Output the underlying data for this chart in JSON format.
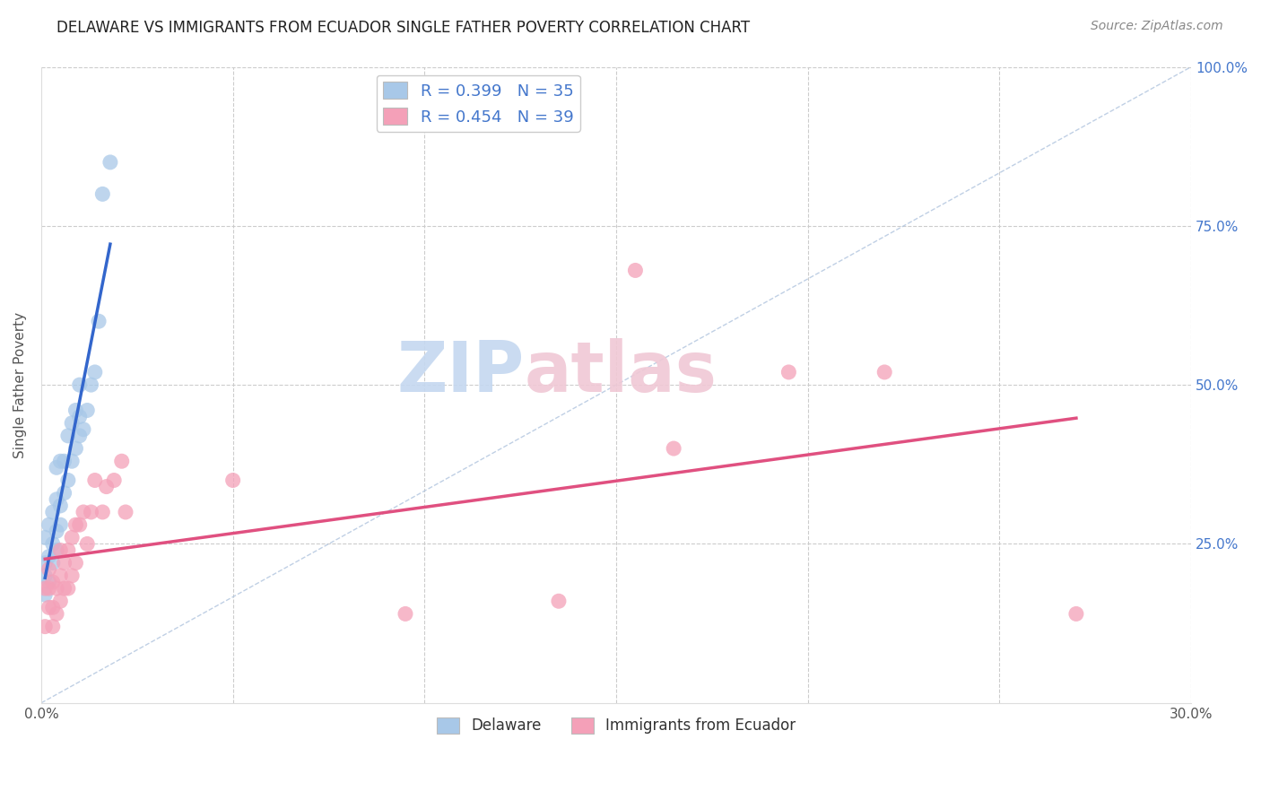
{
  "title": "DELAWARE VS IMMIGRANTS FROM ECUADOR SINGLE FATHER POVERTY CORRELATION CHART",
  "source": "Source: ZipAtlas.com",
  "ylabel": "Single Father Poverty",
  "xlim": [
    0.0,
    0.3
  ],
  "ylim": [
    0.0,
    1.0
  ],
  "legend_R_blue": "R = 0.399",
  "legend_N_blue": "N = 35",
  "legend_R_pink": "R = 0.454",
  "legend_N_pink": "N = 39",
  "legend_label_blue": "Delaware",
  "legend_label_pink": "Immigrants from Ecuador",
  "blue_color": "#a8c8e8",
  "pink_color": "#f4a0b8",
  "blue_line_color": "#3366cc",
  "pink_line_color": "#e05080",
  "watermark_zip": "ZIP",
  "watermark_atlas": "atlas",
  "watermark_color_zip": "#c8daf0",
  "watermark_color_atlas": "#e8c0cc",
  "blue_x": [
    0.001,
    0.001,
    0.001,
    0.001,
    0.002,
    0.002,
    0.002,
    0.003,
    0.003,
    0.003,
    0.004,
    0.004,
    0.004,
    0.004,
    0.005,
    0.005,
    0.005,
    0.006,
    0.006,
    0.007,
    0.007,
    0.008,
    0.008,
    0.009,
    0.009,
    0.01,
    0.01,
    0.01,
    0.011,
    0.012,
    0.013,
    0.014,
    0.015,
    0.016,
    0.018
  ],
  "blue_y": [
    0.17,
    0.2,
    0.22,
    0.26,
    0.19,
    0.23,
    0.28,
    0.22,
    0.25,
    0.3,
    0.24,
    0.27,
    0.32,
    0.37,
    0.28,
    0.31,
    0.38,
    0.33,
    0.38,
    0.35,
    0.42,
    0.38,
    0.44,
    0.4,
    0.46,
    0.42,
    0.45,
    0.5,
    0.43,
    0.46,
    0.5,
    0.52,
    0.6,
    0.8,
    0.85
  ],
  "pink_x": [
    0.001,
    0.001,
    0.002,
    0.002,
    0.002,
    0.003,
    0.003,
    0.003,
    0.004,
    0.004,
    0.005,
    0.005,
    0.005,
    0.006,
    0.006,
    0.007,
    0.007,
    0.008,
    0.008,
    0.009,
    0.009,
    0.01,
    0.011,
    0.012,
    0.013,
    0.014,
    0.016,
    0.017,
    0.019,
    0.021,
    0.022,
    0.05,
    0.095,
    0.135,
    0.155,
    0.165,
    0.195,
    0.22,
    0.27
  ],
  "pink_y": [
    0.12,
    0.18,
    0.15,
    0.18,
    0.21,
    0.12,
    0.15,
    0.19,
    0.14,
    0.18,
    0.16,
    0.2,
    0.24,
    0.18,
    0.22,
    0.18,
    0.24,
    0.2,
    0.26,
    0.22,
    0.28,
    0.28,
    0.3,
    0.25,
    0.3,
    0.35,
    0.3,
    0.34,
    0.35,
    0.38,
    0.3,
    0.35,
    0.14,
    0.16,
    0.68,
    0.4,
    0.52,
    0.52,
    0.14
  ]
}
